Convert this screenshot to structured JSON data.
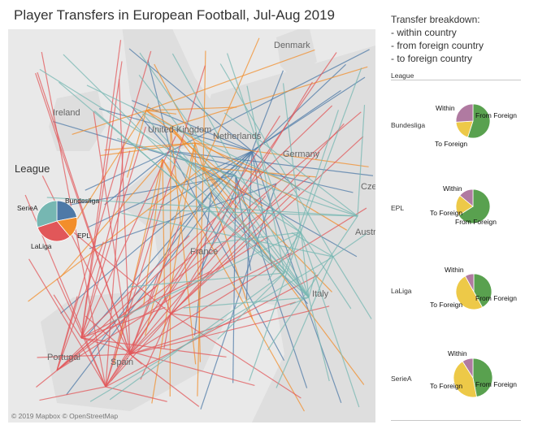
{
  "title": "Player Transfers in European Football, Jul-Aug 2019",
  "map": {
    "labels": {
      "denmark": "Denmark",
      "ireland": "Ireland",
      "netherlands": "Netherlands",
      "germany": "Germany",
      "czech": "Cze",
      "austria": "Austr",
      "italy": "Italy",
      "portugal": "Portugal",
      "spain": "Spain",
      "united_kingdom": "United Kingdom",
      "france": "France"
    },
    "attribution": "© 2019 Mapbox © OpenStreetMap",
    "colors": {
      "sea": "#e9e9e9",
      "land": "#dedede",
      "Bundesliga": "#4e79a7",
      "EPL": "#f28e2b",
      "LaLiga": "#e15759",
      "SerieA": "#76b7b2"
    }
  },
  "legend": {
    "title": "League",
    "items": [
      {
        "name": "Bundesliga",
        "color": "#4e79a7",
        "share": 0.22
      },
      {
        "name": "EPL",
        "color": "#f28e2b",
        "share": 0.17
      },
      {
        "name": "LaLiga",
        "color": "#e15759",
        "share": 0.31
      },
      {
        "name": "SerieA",
        "color": "#76b7b2",
        "share": 0.3
      }
    ]
  },
  "breakdown": {
    "title": "Transfer breakdown:",
    "lines": [
      "- within country",
      "- from foreign country",
      "- to foreign country"
    ],
    "column_header": "League",
    "labels": {
      "within": "Within",
      "from": "From Foreign",
      "to": "To Foreign"
    },
    "colors": {
      "within": "#b07aa1",
      "from": "#59a14f",
      "to": "#edc948"
    },
    "rows": [
      {
        "league": "Bundesliga",
        "within": 0.26,
        "from": 0.55,
        "to": 0.19
      },
      {
        "league": "EPL",
        "within": 0.14,
        "from": 0.66,
        "to": 0.2
      },
      {
        "league": "LaLiga",
        "within": 0.08,
        "from": 0.42,
        "to": 0.5
      },
      {
        "league": "SerieA",
        "within": 0.09,
        "from": 0.47,
        "to": 0.44
      }
    ]
  }
}
